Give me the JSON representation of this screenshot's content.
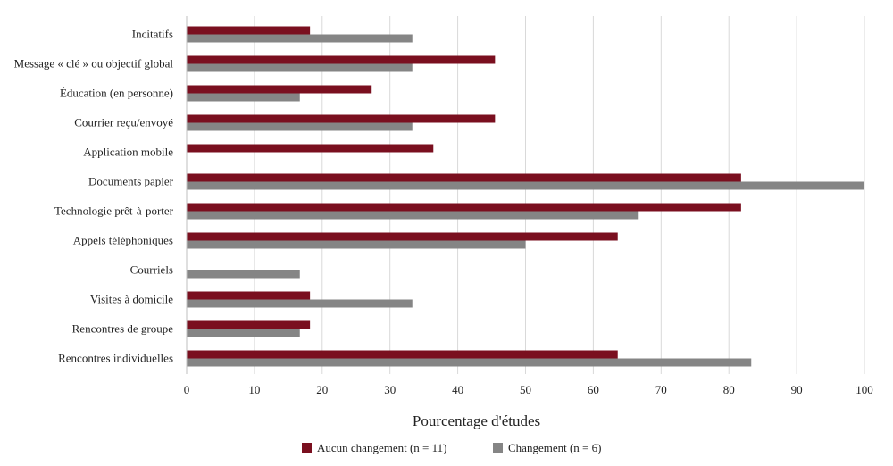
{
  "chart_data": {
    "type": "bar",
    "orientation": "horizontal",
    "title": "",
    "xlabel": "Pourcentage d'études",
    "ylabel": "",
    "xlim": [
      0,
      100
    ],
    "ticks": [
      0,
      10,
      20,
      30,
      40,
      50,
      60,
      70,
      80,
      90,
      100
    ],
    "grid": "vertical",
    "legend_position": "bottom",
    "categories": [
      "Incitatifs",
      "Message « clé » ou objectif global",
      "Éducation (en personne)",
      "Courrier reçu/envoyé",
      "Application mobile",
      "Documents papier",
      "Technologie prêt-à-porter",
      "Appels téléphoniques",
      "Courriels",
      "Visites à domicile",
      "Rencontres de groupe",
      "Rencontres individuelles"
    ],
    "series": [
      {
        "name": "Aucun changement (n = 11)",
        "color": "#7a0f1f",
        "values": [
          18.2,
          45.5,
          27.3,
          45.5,
          36.4,
          81.8,
          81.8,
          63.6,
          0,
          18.2,
          18.2,
          63.6
        ]
      },
      {
        "name": "Changement (n = 6)",
        "color": "#858585",
        "values": [
          33.3,
          33.3,
          16.7,
          33.3,
          0,
          100,
          66.7,
          50,
          16.7,
          33.3,
          16.7,
          83.3
        ]
      }
    ]
  }
}
